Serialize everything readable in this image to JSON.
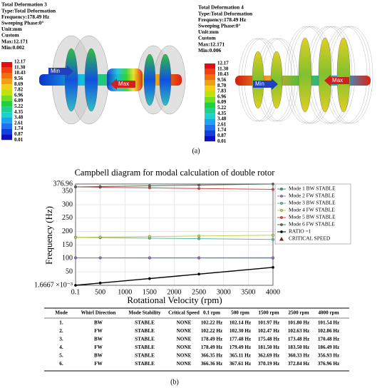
{
  "figure_a": {
    "panels": [
      {
        "lines": [
          "Total Deformation 3",
          "Type:Total Deformation",
          "Frequency:178.49 Hz",
          "Sweeping Phase:0°",
          "Unit:mm",
          "Custom",
          "Max:12.171",
          "Min:0.002"
        ],
        "scale": [
          "12.17",
          "11.30",
          "10.43",
          "9.56",
          "8.69",
          "7.82",
          "6.96",
          "6.09",
          "5.22",
          "4.35",
          "3.48",
          "2.61",
          "1.74",
          "0.87",
          "0.01"
        ],
        "min_label": "Min",
        "max_label": "Max"
      },
      {
        "lines": [
          "Total Deformation 4",
          "Type:Total Deformation",
          "Frequency:178.49 Hz",
          "Sweeping Phase:0°",
          "Unit:mm",
          "Custom",
          "Max:12.171",
          "Min:0.006"
        ],
        "scale": [
          "12.17",
          "11.30",
          "10.43",
          "9.56",
          "8.70",
          "7.83",
          "6.96",
          "6.09",
          "5.22",
          "4.35",
          "3.48",
          "2.61",
          "1.74",
          "0.87",
          "0.01"
        ],
        "min_label": "Min",
        "max_label": "Max"
      }
    ],
    "caption": "(a)"
  },
  "chart_data": {
    "type": "line",
    "title": "Campbell diagram for modal calculation of double rotor",
    "x_label": "Rotational Velocity (rpm)",
    "y_label": "Frequency (Hz)",
    "x": [
      0.1,
      500,
      1500,
      2500,
      4000
    ],
    "xlim": [
      0.1,
      4000
    ],
    "xticks": [
      0.1,
      500,
      1000,
      1500,
      2000,
      2500,
      3000,
      3500,
      4000
    ],
    "ylim": [
      0.0016667,
      376.96
    ],
    "yticks": [
      {
        "value": 0.0016667,
        "label": "1.6667 ×10⁻³"
      },
      50,
      100,
      150,
      200,
      250,
      300,
      350,
      376.96
    ],
    "grid": true,
    "legend": "right",
    "series": [
      {
        "name": "Mode 1 BW STABLE",
        "color": "#2e9c73",
        "marker": "circle",
        "values": [
          102.22,
          102.14,
          101.97,
          101.8,
          101.54
        ]
      },
      {
        "name": "Mode 2 FW STABLE",
        "color": "#9b6fc4",
        "marker": "circle",
        "values": [
          102.22,
          102.3,
          102.47,
          102.63,
          102.86
        ]
      },
      {
        "name": "Mode 3 BW STABLE",
        "color": "#5fb89a",
        "marker": "circle",
        "values": [
          178.49,
          177.48,
          175.48,
          173.48,
          170.48
        ]
      },
      {
        "name": "Mode 4 FW STABLE",
        "color": "#b7d34d",
        "marker": "circle",
        "values": [
          178.49,
          179.49,
          181.5,
          183.5,
          186.49
        ]
      },
      {
        "name": "Mode 5 BW STABLE",
        "color": "#d2433f",
        "marker": "circle",
        "values": [
          366.35,
          365.11,
          362.69,
          360.33,
          356.93
        ]
      },
      {
        "name": "Mode 6 FW STABLE",
        "color": "#4f6b56",
        "marker": "circle",
        "values": [
          366.36,
          367.61,
          370.19,
          372.84,
          376.96
        ]
      },
      {
        "name": "RATIO =1",
        "color": "#000000",
        "marker": "circle",
        "values": [
          0.0016667,
          8.3333,
          25,
          41.667,
          66.667
        ]
      },
      {
        "name": "CRITICAL SPEED",
        "color": "#8b1a1a",
        "marker": "triangle",
        "values": [
          null,
          null,
          null,
          null,
          null
        ]
      }
    ]
  },
  "table": {
    "header": [
      "Mode",
      "Whirl Direction",
      "Mode Stability",
      "Critical Speed",
      "0.1 rpm",
      "500 rpm",
      "1500 rpm",
      "2500 rpm",
      "4000 rpm"
    ],
    "rows": [
      [
        "1.",
        "BW",
        "STABLE",
        "NONE",
        "102.22 Hz",
        "102.14 Hz",
        "101.97 Hz",
        "101.80 Hz",
        "101.54 Hz"
      ],
      [
        "2.",
        "FW",
        "STABLE",
        "NONE",
        "102.22 Hz",
        "102.30 Hz",
        "102.47 Hz",
        "102.63 Hz",
        "102.86 Hz"
      ],
      [
        "3.",
        "BW",
        "STABLE",
        "NONE",
        "178.49 Hz",
        "177.48 Hz",
        "175.48 Hz",
        "173.48 Hz",
        "170.48 Hz"
      ],
      [
        "4.",
        "FW",
        "STABLE",
        "NONE",
        "178.49 Hz",
        "179.49 Hz",
        "181.50 Hz",
        "183.50 Hz",
        "186.49 Hz"
      ],
      [
        "5.",
        "BW",
        "STABLE",
        "NONE",
        "366.35 Hz",
        "365.11 Hz",
        "362.69 Hz",
        "360.33 Hz",
        "356.93 Hz"
      ],
      [
        "6.",
        "FW",
        "STABLE",
        "NONE",
        "366.36 Hz",
        "367.61 Hz",
        "370.19 Hz",
        "372.84 Hz",
        "376.96 Hz"
      ]
    ],
    "caption": "(b)"
  }
}
